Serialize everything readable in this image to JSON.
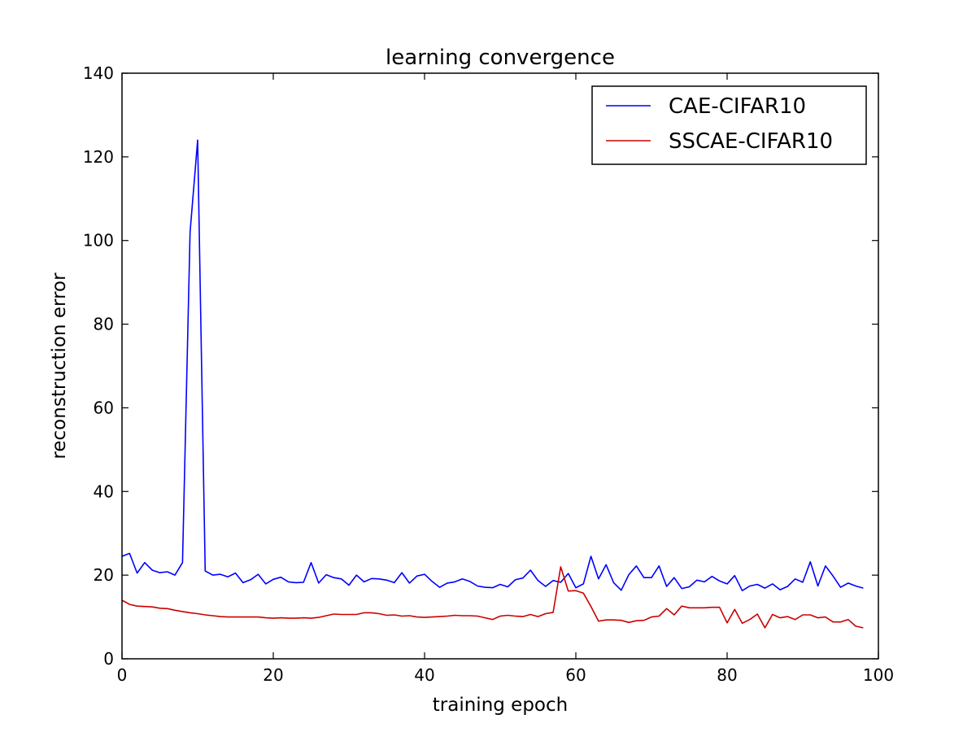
{
  "chart_data": {
    "type": "line",
    "title": "learning convergence",
    "xlabel": "training epoch",
    "ylabel": "reconstruction error",
    "xlim": [
      0,
      100
    ],
    "ylim": [
      0,
      140
    ],
    "xticks": [
      0,
      20,
      40,
      60,
      80,
      100
    ],
    "yticks": [
      0,
      20,
      40,
      60,
      80,
      100,
      120,
      140
    ],
    "grid": false,
    "legend_position": "top-right",
    "series": [
      {
        "name": "CAE-CIFAR10",
        "color": "#0000ff",
        "x": [
          0,
          1,
          2,
          3,
          4,
          5,
          6,
          7,
          8,
          9,
          10,
          11,
          12,
          13,
          14,
          15,
          16,
          17,
          18,
          19,
          20,
          21,
          22,
          23,
          24,
          25,
          26,
          27,
          28,
          29,
          30,
          31,
          32,
          33,
          34,
          35,
          36,
          37,
          38,
          39,
          40,
          41,
          42,
          43,
          44,
          45,
          46,
          47,
          48,
          49,
          50,
          51,
          52,
          53,
          54,
          55,
          56,
          57,
          58,
          59,
          60,
          61,
          62,
          63,
          64,
          65,
          66,
          67,
          68,
          69,
          70,
          71,
          72,
          73,
          74,
          75,
          76,
          77,
          78,
          79,
          80,
          81,
          82,
          83,
          84,
          85,
          86,
          87,
          88,
          89,
          90,
          91,
          92,
          93,
          94,
          95,
          96,
          97,
          98
        ],
        "y": [
          24.5,
          25.2,
          20.5,
          23.0,
          21.2,
          20.6,
          20.8,
          20.0,
          23.0,
          102.0,
          124.0,
          21.0,
          20.0,
          20.2,
          19.6,
          20.5,
          18.2,
          18.9,
          20.2,
          17.9,
          19.0,
          19.5,
          18.4,
          18.2,
          18.3,
          23.0,
          18.1,
          20.1,
          19.4,
          19.1,
          17.6,
          20.0,
          18.4,
          19.2,
          19.1,
          18.8,
          18.2,
          20.6,
          18.1,
          19.8,
          20.2,
          18.5,
          17.1,
          18.1,
          18.4,
          19.1,
          18.5,
          17.4,
          17.1,
          17.0,
          17.8,
          17.2,
          18.9,
          19.3,
          21.2,
          18.7,
          17.3,
          18.7,
          18.3,
          20.4,
          17.0,
          17.9,
          24.5,
          19.1,
          22.5,
          18.2,
          16.4,
          20.1,
          22.2,
          19.4,
          19.4,
          22.2,
          17.3,
          19.4,
          16.8,
          17.2,
          18.8,
          18.4,
          19.7,
          18.6,
          17.9,
          19.9,
          16.3,
          17.4,
          17.8,
          16.9,
          17.9,
          16.5,
          17.3,
          19.1,
          18.3,
          23.2,
          17.4,
          22.2,
          19.8,
          17.1,
          18.1,
          17.4,
          16.9
        ]
      },
      {
        "name": "SSCAE-CIFAR10",
        "color": "#cc0000",
        "x": [
          0,
          1,
          2,
          3,
          4,
          5,
          6,
          7,
          8,
          9,
          10,
          11,
          12,
          13,
          14,
          15,
          16,
          17,
          18,
          19,
          20,
          21,
          22,
          23,
          24,
          25,
          26,
          27,
          28,
          29,
          30,
          31,
          32,
          33,
          34,
          35,
          36,
          37,
          38,
          39,
          40,
          41,
          42,
          43,
          44,
          45,
          46,
          47,
          48,
          49,
          50,
          51,
          52,
          53,
          54,
          55,
          56,
          57,
          58,
          59,
          60,
          61,
          62,
          63,
          64,
          65,
          66,
          67,
          68,
          69,
          70,
          71,
          72,
          73,
          74,
          75,
          76,
          77,
          78,
          79,
          80,
          81,
          82,
          83,
          84,
          85,
          86,
          87,
          88,
          89,
          90,
          91,
          92,
          93,
          94,
          95,
          96,
          97,
          98
        ],
        "y": [
          14.0,
          13.0,
          12.6,
          12.5,
          12.4,
          12.1,
          12.0,
          11.6,
          11.3,
          11.0,
          10.8,
          10.5,
          10.3,
          10.1,
          10.0,
          10.0,
          10.0,
          10.0,
          10.0,
          9.8,
          9.7,
          9.8,
          9.7,
          9.7,
          9.8,
          9.7,
          9.9,
          10.3,
          10.7,
          10.6,
          10.6,
          10.6,
          11.0,
          11.0,
          10.8,
          10.4,
          10.5,
          10.2,
          10.3,
          10.0,
          9.9,
          10.0,
          10.1,
          10.2,
          10.4,
          10.3,
          10.3,
          10.2,
          9.8,
          9.4,
          10.2,
          10.4,
          10.2,
          10.1,
          10.6,
          10.1,
          10.8,
          11.1,
          22.0,
          16.2,
          16.3,
          15.7,
          12.5,
          9.0,
          9.3,
          9.3,
          9.2,
          8.7,
          9.1,
          9.2,
          10.0,
          10.2,
          12.0,
          10.5,
          12.6,
          12.2,
          12.2,
          12.2,
          12.3,
          12.3,
          8.6,
          11.8,
          8.5,
          9.4,
          10.7,
          7.4,
          10.6,
          9.8,
          10.1,
          9.4,
          10.5,
          10.5,
          9.8,
          10.0,
          8.8,
          8.8,
          9.4,
          7.8,
          7.4
        ]
      }
    ]
  }
}
